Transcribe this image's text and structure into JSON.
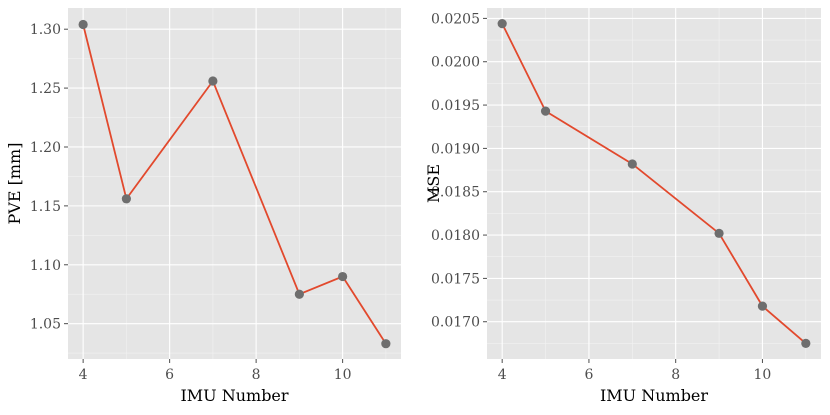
{
  "chart_data": [
    {
      "type": "line",
      "xlabel": "IMU Number",
      "ylabel": "PVE [mm]",
      "x": [
        4,
        5,
        7,
        9,
        10,
        11
      ],
      "y": [
        1.304,
        1.156,
        1.256,
        1.075,
        1.09,
        1.033
      ],
      "xlim": [
        3.65,
        11.35
      ],
      "ylim": [
        1.02,
        1.318
      ],
      "xticks": [
        4,
        6,
        8,
        10
      ],
      "yticks": [
        1.05,
        1.1,
        1.15,
        1.2,
        1.25,
        1.3
      ],
      "ytick_labels": [
        "1.05",
        "1.10",
        "1.15",
        "1.20",
        "1.25",
        "1.30"
      ],
      "grid": true,
      "line_color": "#e2492d",
      "point_color": "#6e6e6e"
    },
    {
      "type": "line",
      "xlabel": "IMU Number",
      "ylabel": "MSE",
      "x": [
        4,
        5,
        7,
        9,
        10,
        11
      ],
      "y": [
        0.02044,
        0.01943,
        0.01882,
        0.01802,
        0.01718,
        0.01675
      ],
      "xlim": [
        3.65,
        11.35
      ],
      "ylim": [
        0.01657,
        0.02062
      ],
      "xticks": [
        4,
        6,
        8,
        10
      ],
      "yticks": [
        0.017,
        0.0175,
        0.018,
        0.0185,
        0.019,
        0.0195,
        0.02,
        0.0205
      ],
      "ytick_labels": [
        "0.0170",
        "0.0175",
        "0.0180",
        "0.0185",
        "0.0190",
        "0.0195",
        "0.0200",
        "0.0205"
      ],
      "grid": true,
      "line_color": "#e2492d",
      "point_color": "#6e6e6e"
    }
  ]
}
